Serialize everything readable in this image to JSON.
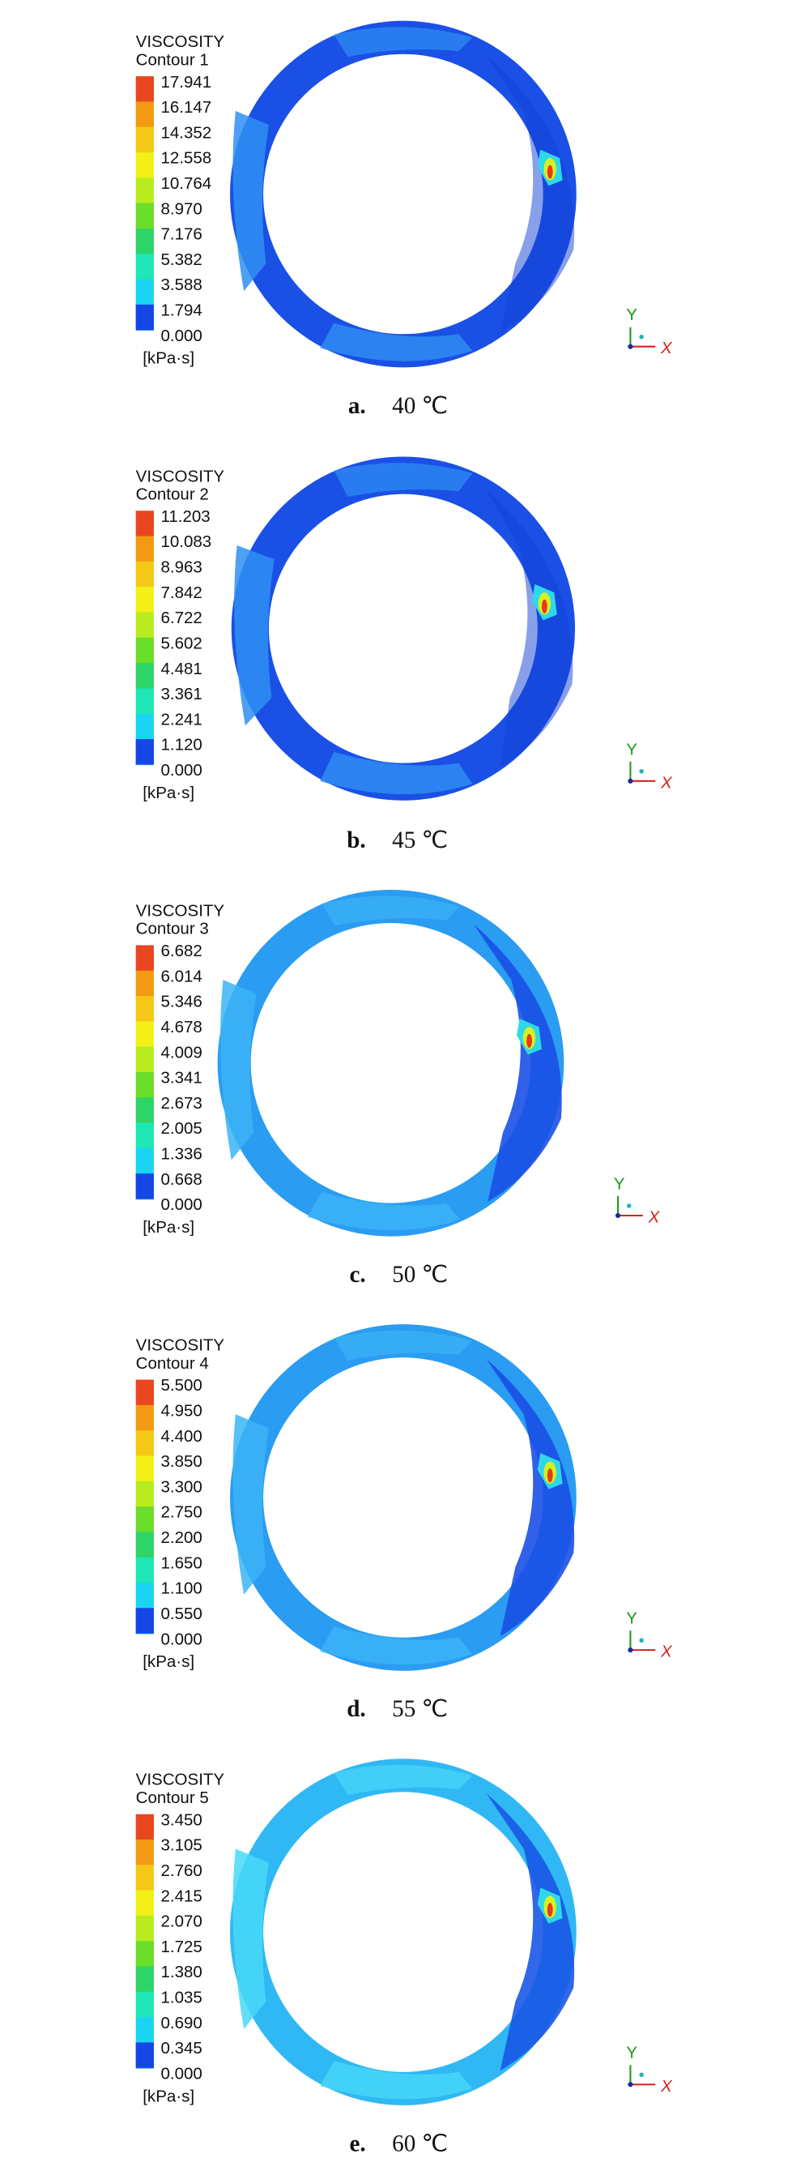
{
  "panels": [
    {
      "title": "VISCOSITY",
      "contour": "Contour 1",
      "levels": [
        "17.941",
        "16.147",
        "14.352",
        "12.558",
        "10.764",
        "8.970",
        "7.176",
        "5.382",
        "3.588",
        "1.794",
        "0.000"
      ],
      "unit": "[kPa·s]",
      "axes": {
        "y": "Y",
        "x": "X"
      },
      "caption": {
        "label": "a.",
        "text": "40 ℃"
      }
    },
    {
      "title": "VISCOSITY",
      "contour": "Contour 2",
      "levels": [
        "11.203",
        "10.083",
        "8.963",
        "7.842",
        "6.722",
        "5.602",
        "4.481",
        "3.361",
        "2.241",
        "1.120",
        "0.000"
      ],
      "unit": "[kPa·s]",
      "axes": {
        "y": "Y",
        "x": "X"
      },
      "caption": {
        "label": "b.",
        "text": "45 ℃"
      }
    },
    {
      "title": "VISCOSITY",
      "contour": "Contour 3",
      "levels": [
        "6.682",
        "6.014",
        "5.346",
        "4.678",
        "4.009",
        "3.341",
        "2.673",
        "2.005",
        "1.336",
        "0.668",
        "0.000"
      ],
      "unit": "[kPa·s]",
      "axes": {
        "y": "Y",
        "x": "X"
      },
      "caption": {
        "label": "c.",
        "text": "50 ℃"
      }
    },
    {
      "title": "VISCOSITY",
      "contour": "Contour 4",
      "levels": [
        "5.500",
        "4.950",
        "4.400",
        "3.850",
        "3.300",
        "2.750",
        "2.200",
        "1.650",
        "1.100",
        "0.550",
        "0.000"
      ],
      "unit": "[kPa·s]",
      "axes": {
        "y": "Y",
        "x": "X"
      },
      "caption": {
        "label": "d.",
        "text": "55 ℃"
      }
    },
    {
      "title": "VISCOSITY",
      "contour": "Contour 5",
      "levels": [
        "3.450",
        "3.105",
        "2.760",
        "2.415",
        "2.070",
        "1.725",
        "1.380",
        "1.035",
        "0.690",
        "0.345",
        "0.000"
      ],
      "unit": "[kPa·s]",
      "axes": {
        "y": "Y",
        "x": "X"
      },
      "caption": {
        "label": "e.",
        "text": "60 ℃"
      }
    }
  ]
}
